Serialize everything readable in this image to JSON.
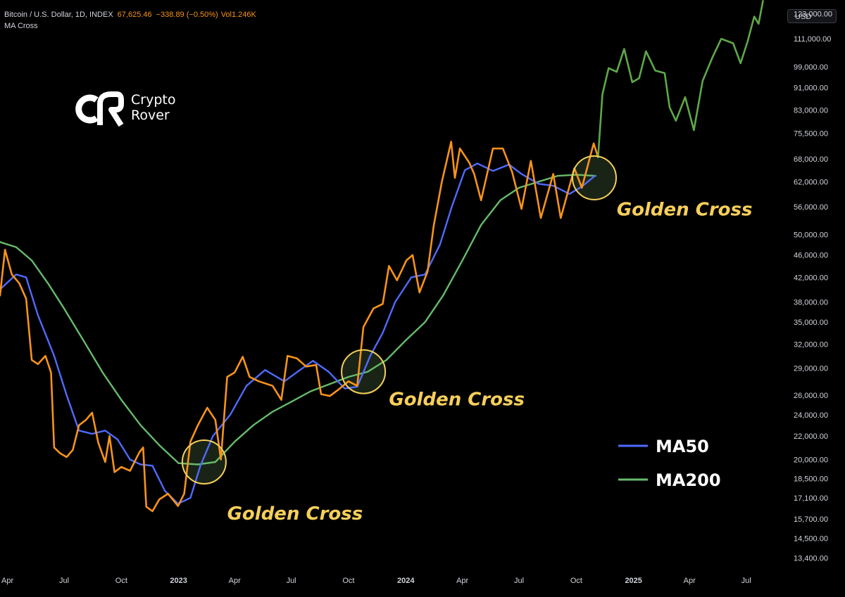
{
  "header": {
    "symbol": "Bitcoin / U.S. Dollar, 1D, INDEX",
    "price": "67,625.46",
    "change": "−338.89 (−0.50%)",
    "volume": "Vol1.246K",
    "indicator": "MA Cross"
  },
  "currency_button": "USD",
  "logo": {
    "line1": "Crypto",
    "line2": "Rover"
  },
  "colors": {
    "price": "#f7931a",
    "price_after": "#5fa84a",
    "ma50": "#4f6bff",
    "ma200": "#66bb6a",
    "annotation": "#f6cf5a",
    "circle_fill": "#1d2a1b"
  },
  "chart_data": {
    "type": "line",
    "y_scale": "log",
    "ylim": [
      12700,
      130000
    ],
    "xlim": [
      "2022-03-20",
      "2025-08-10"
    ],
    "y_ticks": [
      "123,000.00",
      "111,000.00",
      "99,000.00",
      "91,000.00",
      "83,000.00",
      "75,500.00",
      "68,000.00",
      "62,000.00",
      "56,000.00",
      "50,000.00",
      "46,000.00",
      "42,000.00",
      "38,000.00",
      "35,000.00",
      "32,000.00",
      "29,000.00",
      "26,000.00",
      "24,000.00",
      "22,000.00",
      "20,000.00",
      "18,500.00",
      "17,100.00",
      "15,700.00",
      "14,500.00",
      "13,400.00"
    ],
    "x_ticks": [
      {
        "date": "2022-04-01",
        "label": "Apr",
        "bold": false
      },
      {
        "date": "2022-07-01",
        "label": "Jul",
        "bold": false
      },
      {
        "date": "2022-10-01",
        "label": "Oct",
        "bold": false
      },
      {
        "date": "2023-01-01",
        "label": "2023",
        "bold": true
      },
      {
        "date": "2023-04-01",
        "label": "Apr",
        "bold": false
      },
      {
        "date": "2023-07-01",
        "label": "Jul",
        "bold": false
      },
      {
        "date": "2023-10-01",
        "label": "Oct",
        "bold": false
      },
      {
        "date": "2024-01-01",
        "label": "2024",
        "bold": true
      },
      {
        "date": "2024-04-01",
        "label": "Apr",
        "bold": false
      },
      {
        "date": "2024-07-01",
        "label": "Jul",
        "bold": false
      },
      {
        "date": "2024-10-01",
        "label": "Oct",
        "bold": false
      },
      {
        "date": "2025-01-01",
        "label": "2025",
        "bold": true
      },
      {
        "date": "2025-04-01",
        "label": "Apr",
        "bold": false
      },
      {
        "date": "2025-07-01",
        "label": "Jul",
        "bold": false
      }
    ],
    "series": [
      {
        "key": "price",
        "color": "#f7931a",
        "points": [
          [
            "2022-03-20",
            39000
          ],
          [
            "2022-03-28",
            47000
          ],
          [
            "2022-04-08",
            42500
          ],
          [
            "2022-04-20",
            41000
          ],
          [
            "2022-05-01",
            38500
          ],
          [
            "2022-05-10",
            30000
          ],
          [
            "2022-05-20",
            29500
          ],
          [
            "2022-06-01",
            30500
          ],
          [
            "2022-06-10",
            28500
          ],
          [
            "2022-06-15",
            21000
          ],
          [
            "2022-06-25",
            20500
          ],
          [
            "2022-07-05",
            20200
          ],
          [
            "2022-07-15",
            20800
          ],
          [
            "2022-07-25",
            23000
          ],
          [
            "2022-08-05",
            23500
          ],
          [
            "2022-08-15",
            24200
          ],
          [
            "2022-08-25",
            21400
          ],
          [
            "2022-09-05",
            19800
          ],
          [
            "2022-09-12",
            22000
          ],
          [
            "2022-09-20",
            19000
          ],
          [
            "2022-10-01",
            19400
          ],
          [
            "2022-10-15",
            19100
          ],
          [
            "2022-10-30",
            20600
          ],
          [
            "2022-11-05",
            21000
          ],
          [
            "2022-11-10",
            16500
          ],
          [
            "2022-11-20",
            16200
          ],
          [
            "2022-12-01",
            17000
          ],
          [
            "2022-12-15",
            17400
          ],
          [
            "2022-12-31",
            16550
          ],
          [
            "2023-01-10",
            17400
          ],
          [
            "2023-01-20",
            21500
          ],
          [
            "2023-02-01",
            23000
          ],
          [
            "2023-02-16",
            24700
          ],
          [
            "2023-03-01",
            23500
          ],
          [
            "2023-03-10",
            20000
          ],
          [
            "2023-03-20",
            28000
          ],
          [
            "2023-04-01",
            28500
          ],
          [
            "2023-04-14",
            30400
          ],
          [
            "2023-04-25",
            28000
          ],
          [
            "2023-05-10",
            27500
          ],
          [
            "2023-06-01",
            27000
          ],
          [
            "2023-06-15",
            25500
          ],
          [
            "2023-06-25",
            30500
          ],
          [
            "2023-07-10",
            30200
          ],
          [
            "2023-07-25",
            29200
          ],
          [
            "2023-08-10",
            29400
          ],
          [
            "2023-08-18",
            26100
          ],
          [
            "2023-09-01",
            25900
          ],
          [
            "2023-09-15",
            26600
          ],
          [
            "2023-10-01",
            27500
          ],
          [
            "2023-10-15",
            27000
          ],
          [
            "2023-10-25",
            34300
          ],
          [
            "2023-11-10",
            37000
          ],
          [
            "2023-11-25",
            37700
          ],
          [
            "2023-12-05",
            44000
          ],
          [
            "2023-12-18",
            41500
          ],
          [
            "2024-01-02",
            45000
          ],
          [
            "2024-01-12",
            46000
          ],
          [
            "2024-01-23",
            39500
          ],
          [
            "2024-02-05",
            43000
          ],
          [
            "2024-02-15",
            51900
          ],
          [
            "2024-02-28",
            62000
          ],
          [
            "2024-03-14",
            73000
          ],
          [
            "2024-03-20",
            63000
          ],
          [
            "2024-03-28",
            71000
          ],
          [
            "2024-04-12",
            67000
          ],
          [
            "2024-04-20",
            64000
          ],
          [
            "2024-05-01",
            57500
          ],
          [
            "2024-05-20",
            71000
          ],
          [
            "2024-06-05",
            71000
          ],
          [
            "2024-06-20",
            64500
          ],
          [
            "2024-07-05",
            55500
          ],
          [
            "2024-07-20",
            67500
          ],
          [
            "2024-08-05",
            53500
          ],
          [
            "2024-08-25",
            64000
          ],
          [
            "2024-09-06",
            53500
          ],
          [
            "2024-09-28",
            65500
          ],
          [
            "2024-10-10",
            60500
          ],
          [
            "2024-10-29",
            72500
          ],
          [
            "2024-11-05",
            68500
          ]
        ]
      },
      {
        "key": "price_after",
        "color": "#5fa84a",
        "points": [
          [
            "2024-11-05",
            68500
          ],
          [
            "2024-11-12",
            88500
          ],
          [
            "2024-11-22",
            98500
          ],
          [
            "2024-12-05",
            97000
          ],
          [
            "2024-12-17",
            106500
          ],
          [
            "2024-12-30",
            93000
          ],
          [
            "2025-01-10",
            94500
          ],
          [
            "2025-01-21",
            105500
          ],
          [
            "2025-02-05",
            97500
          ],
          [
            "2025-02-20",
            96500
          ],
          [
            "2025-02-28",
            84000
          ],
          [
            "2025-03-10",
            79500
          ],
          [
            "2025-03-25",
            87500
          ],
          [
            "2025-04-08",
            76500
          ],
          [
            "2025-04-22",
            93500
          ],
          [
            "2025-05-08",
            103000
          ],
          [
            "2025-05-22",
            111000
          ],
          [
            "2025-06-10",
            109000
          ],
          [
            "2025-06-22",
            100500
          ],
          [
            "2025-07-03",
            109500
          ],
          [
            "2025-07-14",
            121500
          ],
          [
            "2025-07-21",
            118000
          ],
          [
            "2025-07-28",
            129500
          ]
        ]
      },
      {
        "key": "ma50",
        "color": "#4f6bff",
        "points": [
          [
            "2022-03-20",
            40000
          ],
          [
            "2022-04-15",
            42500
          ],
          [
            "2022-05-01",
            42000
          ],
          [
            "2022-05-20",
            36000
          ],
          [
            "2022-06-15",
            30500
          ],
          [
            "2022-07-05",
            26000
          ],
          [
            "2022-07-25",
            22500
          ],
          [
            "2022-08-15",
            22200
          ],
          [
            "2022-09-05",
            22500
          ],
          [
            "2022-09-25",
            21700
          ],
          [
            "2022-10-15",
            20000
          ],
          [
            "2022-11-01",
            19600
          ],
          [
            "2022-11-20",
            19500
          ],
          [
            "2022-12-10",
            17600
          ],
          [
            "2022-12-31",
            16700
          ],
          [
            "2023-01-20",
            17100
          ],
          [
            "2023-02-05",
            19500
          ],
          [
            "2023-02-25",
            22000
          ],
          [
            "2023-03-25",
            24000
          ],
          [
            "2023-04-20",
            27000
          ],
          [
            "2023-05-20",
            28800
          ],
          [
            "2023-06-20",
            27500
          ],
          [
            "2023-07-15",
            28800
          ],
          [
            "2023-08-05",
            29900
          ],
          [
            "2023-08-30",
            28600
          ],
          [
            "2023-09-25",
            26700
          ],
          [
            "2023-10-15",
            26900
          ],
          [
            "2023-11-05",
            30500
          ],
          [
            "2023-11-25",
            33500
          ],
          [
            "2023-12-15",
            38000
          ],
          [
            "2024-01-10",
            42000
          ],
          [
            "2024-02-01",
            42500
          ],
          [
            "2024-02-25",
            48000
          ],
          [
            "2024-03-15",
            56000
          ],
          [
            "2024-04-05",
            65000
          ],
          [
            "2024-04-25",
            66800
          ],
          [
            "2024-05-20",
            64800
          ],
          [
            "2024-06-15",
            66500
          ],
          [
            "2024-07-05",
            64000
          ],
          [
            "2024-08-01",
            61500
          ],
          [
            "2024-08-25",
            61000
          ],
          [
            "2024-09-20",
            59000
          ],
          [
            "2024-10-10",
            60800
          ],
          [
            "2024-10-31",
            63500
          ]
        ]
      },
      {
        "key": "ma200",
        "color": "#66bb6a",
        "points": [
          [
            "2022-03-20",
            48500
          ],
          [
            "2022-04-15",
            47500
          ],
          [
            "2022-05-10",
            45000
          ],
          [
            "2022-06-05",
            41000
          ],
          [
            "2022-07-01",
            37000
          ],
          [
            "2022-08-01",
            32500
          ],
          [
            "2022-09-01",
            28500
          ],
          [
            "2022-10-01",
            25500
          ],
          [
            "2022-11-01",
            23000
          ],
          [
            "2022-12-01",
            21200
          ],
          [
            "2023-01-01",
            19700
          ],
          [
            "2023-02-01",
            19600
          ],
          [
            "2023-03-01",
            19800
          ],
          [
            "2023-04-01",
            21500
          ],
          [
            "2023-05-01",
            23000
          ],
          [
            "2023-06-01",
            24300
          ],
          [
            "2023-07-01",
            25300
          ],
          [
            "2023-08-01",
            26400
          ],
          [
            "2023-09-01",
            27200
          ],
          [
            "2023-10-01",
            28000
          ],
          [
            "2023-11-01",
            28600
          ],
          [
            "2023-12-01",
            30000
          ],
          [
            "2024-01-01",
            32500
          ],
          [
            "2024-02-01",
            35000
          ],
          [
            "2024-03-01",
            39000
          ],
          [
            "2024-04-01",
            45000
          ],
          [
            "2024-05-01",
            52000
          ],
          [
            "2024-06-01",
            57500
          ],
          [
            "2024-07-01",
            60500
          ],
          [
            "2024-08-01",
            62000
          ],
          [
            "2024-09-01",
            63500
          ],
          [
            "2024-10-01",
            63800
          ],
          [
            "2024-11-01",
            63500
          ]
        ]
      }
    ],
    "annotations": [
      {
        "label": "Golden Cross",
        "circle_date": "2023-02-11",
        "circle_value": 19800,
        "label_date": "2023-03-20",
        "label_value": 15650
      },
      {
        "label": "Golden Cross",
        "circle_date": "2023-10-25",
        "circle_value": 28600,
        "label_date": "2023-12-05",
        "label_value": 24950
      },
      {
        "label": "Golden Cross",
        "circle_date": "2024-10-30",
        "circle_value": 63000,
        "label_date": "2024-12-05",
        "label_value": 54000
      }
    ],
    "legend": [
      {
        "label": "MA50",
        "color": "#4f6bff"
      },
      {
        "label": "MA200",
        "color": "#66bb6a"
      }
    ]
  }
}
